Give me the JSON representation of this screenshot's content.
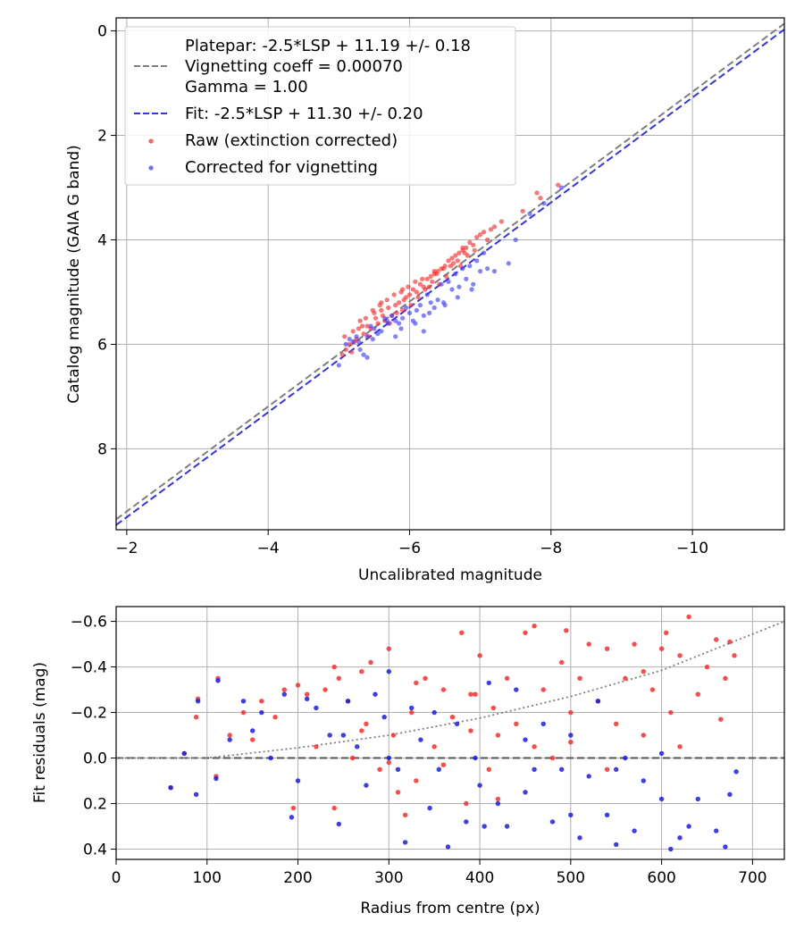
{
  "chart_data": [
    {
      "type": "scatter",
      "xlabel": "Uncalibrated magnitude",
      "ylabel": "Catalog magnitude (GAIA G band)",
      "xlim": [
        -1.85,
        -11.3
      ],
      "ylim": [
        -0.25,
        9.55
      ],
      "x_inverted": true,
      "y_inverted": true,
      "grid": true,
      "xticks": [
        -2,
        -4,
        -6,
        -8,
        -10
      ],
      "xtick_labels": [
        "−2",
        "−4",
        "−6",
        "−8",
        "−10"
      ],
      "yticks": [
        0,
        2,
        4,
        6,
        8
      ],
      "ytick_labels": [
        "0",
        "2",
        "4",
        "6",
        "8"
      ],
      "legend_position": "top-left",
      "legend": [
        {
          "kind": "text",
          "label": "Platepar: -2.5*LSP + 11.19 +/- 0.18"
        },
        {
          "kind": "line",
          "color": "#7f7f7f",
          "label": "Vignetting coeff = 0.00070"
        },
        {
          "kind": "text",
          "label": "Gamma = 1.00"
        },
        {
          "kind": "line",
          "color": "#3333ee",
          "label": "Fit: -2.5*LSP + 11.30 +/- 0.20"
        },
        {
          "kind": "dot",
          "color": "#ff2a2a",
          "label": "Raw (extinction corrected)"
        },
        {
          "kind": "dot",
          "color": "#3f3fff",
          "label": "Corrected for vignetting"
        }
      ],
      "lines": [
        {
          "name": "Platepar",
          "color": "#7f7f7f",
          "x": [
            -1.85,
            -11.3
          ],
          "y": [
            9.35,
            -0.14
          ]
        },
        {
          "name": "Fit",
          "color": "#3333ee",
          "x": [
            -1.85,
            -11.3
          ],
          "y": [
            9.46,
            -0.03
          ]
        }
      ],
      "series": [
        {
          "name": "Raw (extinction corrected)",
          "color": "#ff2a2a",
          "x": [
            -5.08,
            -5.15,
            -5.2,
            -5.25,
            -5.3,
            -5.35,
            -5.4,
            -5.45,
            -5.5,
            -5.55,
            -5.6,
            -5.65,
            -5.7,
            -5.75,
            -5.8,
            -5.85,
            -5.9,
            -5.95,
            -6.0,
            -6.05,
            -6.1,
            -6.15,
            -6.2,
            -6.25,
            -6.3,
            -6.35,
            -6.4,
            -6.45,
            -6.5,
            -6.55,
            -6.6,
            -6.65,
            -6.7,
            -6.75,
            -6.8,
            -6.85,
            -6.9,
            -6.95,
            -7.0,
            -7.05,
            -7.1,
            -7.15,
            -7.2,
            -5.1,
            -5.22,
            -5.33,
            -5.42,
            -5.52,
            -5.62,
            -5.72,
            -5.82,
            -5.92,
            -6.02,
            -6.12,
            -6.22,
            -6.32,
            -6.42,
            -6.52,
            -6.62,
            -6.72,
            -6.82,
            -6.92,
            -5.18,
            -5.28,
            -5.38,
            -5.48,
            -5.58,
            -5.68,
            -5.78,
            -5.88,
            -5.98,
            -6.08,
            -6.18,
            -6.28,
            -6.38,
            -6.48,
            -6.58,
            -6.68,
            -6.78,
            -7.3,
            -7.6,
            -7.8,
            -7.85,
            -8.1,
            -5.05,
            -5.6,
            -5.9,
            -6.35,
            -6.75
          ],
          "y": [
            5.85,
            6.0,
            5.75,
            5.9,
            5.55,
            5.8,
            5.65,
            5.7,
            5.4,
            5.6,
            5.35,
            5.55,
            5.3,
            5.45,
            5.25,
            5.2,
            5.35,
            5.1,
            5.05,
            4.95,
            5.0,
            4.85,
            4.9,
            4.75,
            4.7,
            4.65,
            4.6,
            4.55,
            4.5,
            4.4,
            4.35,
            4.3,
            4.25,
            4.2,
            4.15,
            4.05,
            4.1,
            3.95,
            3.9,
            3.85,
            4.0,
            3.8,
            3.75,
            6.1,
            5.95,
            5.65,
            5.85,
            5.5,
            5.45,
            5.6,
            5.4,
            5.15,
            5.25,
            5.1,
            4.95,
            4.8,
            4.85,
            4.7,
            4.45,
            4.5,
            4.3,
            4.2,
            6.15,
            5.7,
            5.5,
            5.35,
            5.25,
            5.15,
            5.05,
            5.0,
            4.9,
            4.8,
            4.75,
            4.9,
            4.65,
            4.55,
            4.5,
            4.4,
            4.25,
            3.65,
            3.45,
            3.1,
            3.2,
            2.95,
            6.2,
            5.2,
            4.95,
            4.6,
            4.15
          ]
        },
        {
          "name": "Corrected for vignetting",
          "color": "#3f3fff",
          "x": [
            -5.1,
            -5.2,
            -5.3,
            -5.4,
            -5.5,
            -5.6,
            -5.7,
            -5.8,
            -5.9,
            -6.0,
            -6.1,
            -6.2,
            -6.3,
            -6.4,
            -6.5,
            -6.6,
            -6.7,
            -6.8,
            -6.9,
            -7.0,
            -7.1,
            -5.15,
            -5.25,
            -5.35,
            -5.45,
            -5.55,
            -5.65,
            -5.75,
            -5.85,
            -5.95,
            -6.05,
            -6.15,
            -6.25,
            -6.35,
            -6.45,
            -6.55,
            -6.65,
            -6.75,
            -6.85,
            -6.95,
            -7.05,
            -5.28,
            -5.48,
            -5.68,
            -5.88,
            -6.08,
            -6.28,
            -6.48,
            -6.68,
            -6.88,
            -7.2,
            -7.4,
            -7.5,
            -7.7,
            -7.9,
            -8.15,
            -5.0,
            -5.4,
            -5.8,
            -6.2
          ],
          "y": [
            6.0,
            5.95,
            6.1,
            5.85,
            5.7,
            5.75,
            5.6,
            5.55,
            5.5,
            5.4,
            5.35,
            5.45,
            5.2,
            5.15,
            5.25,
            4.95,
            4.9,
            4.75,
            4.85,
            4.6,
            4.55,
            5.9,
            5.85,
            6.2,
            5.65,
            5.8,
            5.5,
            5.45,
            5.6,
            5.3,
            5.55,
            5.25,
            5.05,
            5.3,
            4.85,
            4.8,
            4.65,
            4.55,
            4.5,
            4.4,
            4.25,
            5.95,
            5.9,
            5.55,
            5.7,
            5.6,
            5.4,
            5.2,
            5.1,
            4.95,
            4.6,
            4.45,
            4.0,
            3.5,
            3.3,
            3.0,
            6.4,
            6.25,
            5.85,
            5.75
          ]
        }
      ]
    },
    {
      "type": "scatter",
      "xlabel": "Radius from centre (px)",
      "ylabel": "Fit residuals (mag)",
      "xlim": [
        0,
        735
      ],
      "ylim": [
        -0.665,
        0.445
      ],
      "grid": true,
      "xticks": [
        0,
        100,
        200,
        300,
        400,
        500,
        600,
        700
      ],
      "xtick_labels": [
        "0",
        "100",
        "200",
        "300",
        "400",
        "500",
        "600",
        "700"
      ],
      "yticks": [
        0.4,
        0.2,
        0.0,
        -0.2,
        -0.4,
        -0.6
      ],
      "ytick_labels": [
        "0.4",
        "0.2",
        "0.0",
        "−0.2",
        "−0.4",
        "−0.6"
      ],
      "lines": [
        {
          "name": "zero",
          "color": "#555555",
          "style": "dashed",
          "x": [
            0,
            735
          ],
          "y": [
            0,
            0
          ]
        },
        {
          "name": "vignetting",
          "color": "#808080",
          "style": "dotted",
          "x": [
            0,
            100,
            200,
            300,
            400,
            500,
            600,
            735
          ],
          "y": [
            0.0,
            0.0,
            -0.045,
            -0.1,
            -0.175,
            -0.27,
            -0.385,
            -0.6
          ]
        }
      ],
      "series": [
        {
          "name": "Raw",
          "color": "#ff2a2a",
          "x": [
            60,
            75,
            88,
            90,
            110,
            112,
            125,
            140,
            150,
            160,
            175,
            185,
            195,
            200,
            210,
            220,
            230,
            240,
            245,
            255,
            260,
            270,
            275,
            280,
            290,
            300,
            305,
            310,
            318,
            325,
            330,
            340,
            350,
            360,
            370,
            380,
            385,
            390,
            395,
            400,
            410,
            415,
            420,
            430,
            440,
            450,
            460,
            470,
            480,
            490,
            495,
            500,
            510,
            520,
            530,
            540,
            550,
            560,
            570,
            580,
            590,
            600,
            605,
            610,
            620,
            630,
            640,
            650,
            665,
            670,
            675,
            680,
            240,
            270,
            300,
            330,
            360,
            390,
            420,
            460,
            500,
            540,
            580,
            620,
            660
          ],
          "y": [
            0.13,
            -0.02,
            -0.18,
            -0.26,
            0.08,
            -0.35,
            -0.1,
            -0.2,
            -0.08,
            -0.25,
            -0.18,
            -0.3,
            0.22,
            -0.32,
            -0.28,
            -0.05,
            -0.3,
            0.22,
            -0.35,
            -0.25,
            0.0,
            -0.38,
            -0.15,
            -0.42,
            0.05,
            -0.48,
            -0.1,
            0.15,
            0.25,
            -0.2,
            0.1,
            -0.35,
            -0.05,
            -0.3,
            -0.18,
            -0.55,
            0.2,
            -0.12,
            -0.28,
            -0.45,
            0.05,
            -0.22,
            -0.1,
            -0.35,
            -0.15,
            -0.55,
            -0.05,
            -0.3,
            0.0,
            -0.42,
            -0.56,
            -0.2,
            -0.35,
            -0.5,
            -0.25,
            -0.48,
            -0.15,
            -0.35,
            -0.5,
            -0.1,
            -0.3,
            -0.48,
            -0.55,
            -0.2,
            -0.45,
            -0.62,
            -0.28,
            -0.4,
            -0.17,
            -0.35,
            -0.51,
            -0.45,
            -0.4,
            -0.12,
            0.02,
            -0.33,
            0.03,
            -0.28,
            0.18,
            -0.58,
            -0.07,
            0.05,
            -0.38,
            -0.05,
            -0.52
          ]
        },
        {
          "name": "Corrected",
          "color": "#1a1aee",
          "x": [
            60,
            75,
            88,
            90,
            110,
            112,
            125,
            140,
            150,
            160,
            170,
            185,
            193,
            200,
            210,
            220,
            235,
            245,
            255,
            265,
            275,
            285,
            295,
            300,
            310,
            318,
            325,
            335,
            345,
            355,
            365,
            375,
            385,
            395,
            405,
            410,
            420,
            430,
            440,
            450,
            460,
            470,
            480,
            490,
            500,
            510,
            520,
            530,
            540,
            550,
            560,
            570,
            580,
            600,
            610,
            620,
            630,
            640,
            660,
            670,
            675,
            682,
            250,
            300,
            350,
            400,
            450,
            500,
            550,
            600
          ],
          "y": [
            0.13,
            -0.02,
            0.16,
            -0.25,
            0.09,
            -0.34,
            -0.08,
            -0.25,
            -0.12,
            -0.2,
            0.0,
            -0.28,
            0.26,
            0.1,
            -0.26,
            -0.22,
            -0.1,
            0.29,
            -0.25,
            -0.05,
            0.12,
            -0.28,
            -0.18,
            -0.38,
            0.05,
            0.37,
            -0.22,
            -0.08,
            0.22,
            0.05,
            0.39,
            -0.15,
            0.28,
            0.0,
            0.3,
            -0.33,
            0.2,
            0.3,
            -0.3,
            0.15,
            0.05,
            -0.15,
            0.28,
            0.05,
            -0.1,
            0.35,
            0.08,
            -0.25,
            0.25,
            0.38,
            0.0,
            0.32,
            0.1,
            0.18,
            0.4,
            0.35,
            0.3,
            0.18,
            0.32,
            0.39,
            0.16,
            0.06,
            -0.1,
            0.0,
            -0.2,
            0.12,
            -0.08,
            0.25,
            0.05,
            -0.02
          ]
        }
      ]
    }
  ]
}
